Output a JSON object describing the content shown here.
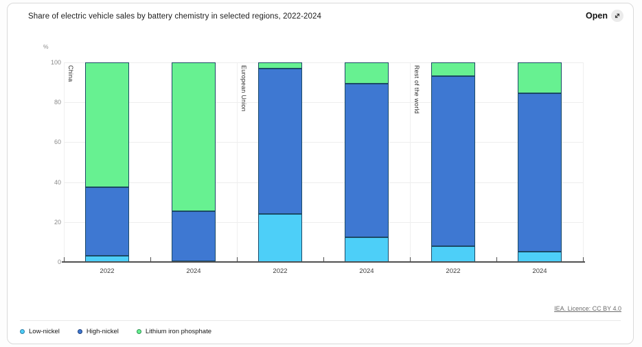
{
  "header": {
    "title": "Share of electric vehicle sales by battery chemistry in selected regions, 2022-2024",
    "open_label": "Open",
    "open_icon": "expand-diagonal-arrows"
  },
  "footer": {
    "licence": "IEA. Licence: CC BY 4.0"
  },
  "chart_data": {
    "type": "bar",
    "stacked": true,
    "title": "Share of electric vehicle sales by battery chemistry in selected regions, 2022-2024",
    "ylabel": "%",
    "ylim": [
      0,
      100
    ],
    "yticks": [
      0,
      20,
      40,
      60,
      80,
      100
    ],
    "grid": true,
    "legend_position": "bottom",
    "groups": [
      "China",
      "European Union",
      "Rest of the world"
    ],
    "categories": [
      "2022",
      "2024",
      "2022",
      "2024",
      "2022",
      "2024"
    ],
    "series": [
      {
        "name": "Low-nickel",
        "color": "#4dcff8",
        "dot_border": "#2a7ca6",
        "values": [
          3,
          0.5,
          24,
          12.5,
          8,
          5
        ]
      },
      {
        "name": "High-nickel",
        "color": "#3e78d2",
        "dot_border": "#1e3f7a",
        "values": [
          34.5,
          25,
          73,
          77,
          85,
          79.5
        ]
      },
      {
        "name": "Lithium iron phosphate",
        "color": "#67f191",
        "dot_border": "#2d9150",
        "values": [
          62.5,
          74.5,
          3,
          10.5,
          7,
          15.5
        ]
      }
    ],
    "bar_border_color": "#1b4965",
    "axis_color": "#4f4f4f"
  }
}
